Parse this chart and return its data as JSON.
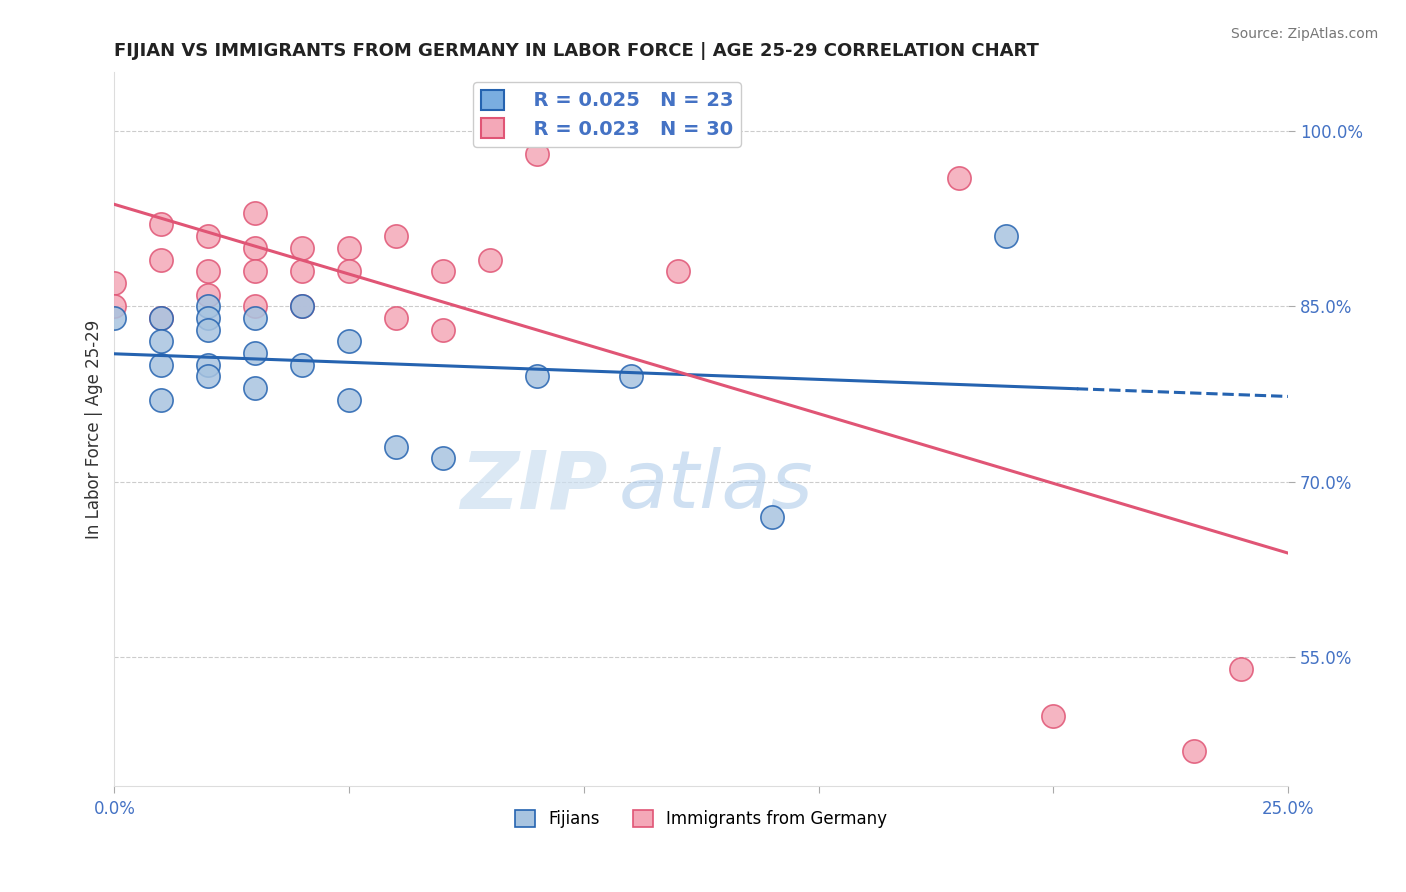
{
  "title": "FIJIAN VS IMMIGRANTS FROM GERMANY IN LABOR FORCE | AGE 25-29 CORRELATION CHART",
  "source": "Source: ZipAtlas.com",
  "ylabel": "In Labor Force | Age 25-29",
  "xlabel_bottom_left": "0.0%",
  "xlabel_bottom_right": "25.0%",
  "y_tick_labels": [
    "55.0%",
    "70.0%",
    "85.0%",
    "100.0%"
  ],
  "y_tick_values": [
    0.55,
    0.7,
    0.85,
    1.0
  ],
  "xlim": [
    0.0,
    0.25
  ],
  "ylim": [
    0.44,
    1.05
  ],
  "fijian_R": 0.025,
  "fijian_N": 23,
  "germany_R": 0.023,
  "germany_N": 30,
  "fijian_color": "#a8c4e0",
  "germany_color": "#f4a8b8",
  "fijian_line_color": "#2563b0",
  "germany_line_color": "#e05575",
  "legend_fijian_color": "#7aade0",
  "legend_germany_color": "#f4a8b8",
  "watermark_zip": "ZIP",
  "watermark_atlas": "atlas",
  "fijian_x": [
    0.0,
    0.01,
    0.01,
    0.01,
    0.01,
    0.02,
    0.02,
    0.02,
    0.02,
    0.02,
    0.03,
    0.03,
    0.03,
    0.04,
    0.04,
    0.05,
    0.05,
    0.06,
    0.07,
    0.09,
    0.11,
    0.14,
    0.19
  ],
  "fijian_y": [
    0.84,
    0.84,
    0.82,
    0.8,
    0.77,
    0.85,
    0.84,
    0.83,
    0.8,
    0.79,
    0.84,
    0.81,
    0.78,
    0.85,
    0.8,
    0.82,
    0.77,
    0.73,
    0.72,
    0.79,
    0.79,
    0.67,
    0.91
  ],
  "germany_x": [
    0.0,
    0.0,
    0.01,
    0.01,
    0.01,
    0.02,
    0.02,
    0.02,
    0.03,
    0.03,
    0.03,
    0.03,
    0.04,
    0.04,
    0.04,
    0.05,
    0.05,
    0.06,
    0.06,
    0.07,
    0.07,
    0.08,
    0.09,
    0.09,
    0.12,
    0.13,
    0.18,
    0.2,
    0.23,
    0.24
  ],
  "germany_y": [
    0.87,
    0.85,
    0.92,
    0.89,
    0.84,
    0.91,
    0.88,
    0.86,
    0.93,
    0.9,
    0.88,
    0.85,
    0.9,
    0.88,
    0.85,
    0.9,
    0.88,
    0.91,
    0.84,
    0.88,
    0.83,
    0.89,
    1.0,
    0.98,
    0.88,
    1.0,
    0.96,
    0.5,
    0.47,
    0.54
  ],
  "grid_color": "#cccccc",
  "background_color": "#ffffff",
  "title_color": "#222222",
  "tick_label_color": "#4472c4"
}
